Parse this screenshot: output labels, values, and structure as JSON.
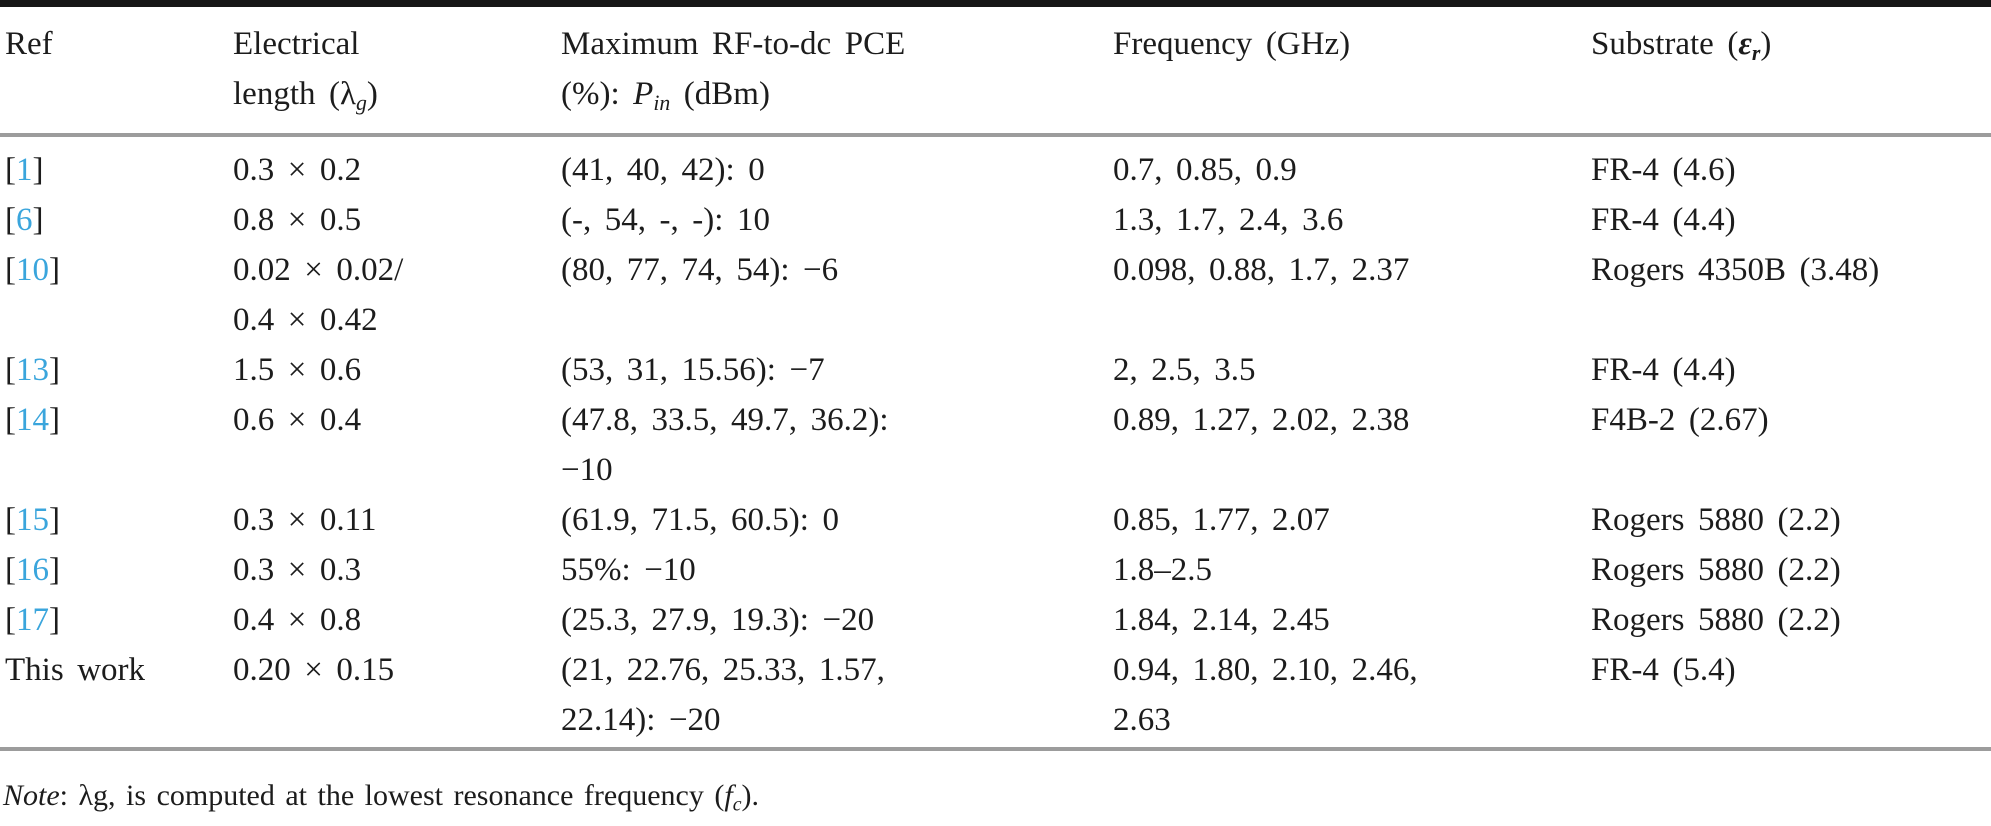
{
  "colors": {
    "ref_blue": "#3aa5dc",
    "text": "#1c1c1c",
    "rule_dark": "#161616",
    "rule_gray": "#9c9c9c"
  },
  "table": {
    "header": {
      "ref": "Ref",
      "electrical": {
        "line1": "Electrical",
        "line2_pre": "length (",
        "symbol": "λ",
        "sub": "g",
        "line2_post": ")"
      },
      "pce": {
        "line1": "Maximum RF-to-dc PCE",
        "line2_pre": "(%): ",
        "symbol": "P",
        "sub": "in",
        "line2_post": " (dBm)"
      },
      "frequency": "Frequency (GHz)",
      "substrate": {
        "pre": "Substrate (",
        "symbol": "ε",
        "sub": "r",
        "post": ")"
      }
    },
    "rows": [
      {
        "ref": {
          "bracket_open": "[",
          "num": "1",
          "bracket_close": "]"
        },
        "electrical": [
          "0.3 × 0.2"
        ],
        "pce": [
          "(41, 40, 42): 0"
        ],
        "frequency": [
          "0.7, 0.85, 0.9"
        ],
        "substrate": [
          "FR-4 (4.6)"
        ]
      },
      {
        "ref": {
          "bracket_open": "[",
          "num": "6",
          "bracket_close": "]"
        },
        "electrical": [
          "0.8 × 0.5"
        ],
        "pce": [
          "(-, 54, -, -): 10"
        ],
        "frequency": [
          "1.3, 1.7, 2.4, 3.6"
        ],
        "substrate": [
          "FR-4 (4.4)"
        ]
      },
      {
        "ref": {
          "bracket_open": "[",
          "num": "10",
          "bracket_close": "]"
        },
        "electrical": [
          "0.02 × 0.02/",
          "0.4 × 0.42"
        ],
        "pce": [
          "(80, 77, 74, 54): −6"
        ],
        "frequency": [
          "0.098, 0.88, 1.7, 2.37"
        ],
        "substrate": [
          "Rogers 4350B (3.48)"
        ]
      },
      {
        "ref": {
          "bracket_open": "[",
          "num": "13",
          "bracket_close": "]"
        },
        "electrical": [
          "1.5 × 0.6"
        ],
        "pce": [
          "(53, 31, 15.56): −7"
        ],
        "frequency": [
          "2, 2.5, 3.5"
        ],
        "substrate": [
          "FR-4 (4.4)"
        ]
      },
      {
        "ref": {
          "bracket_open": "[",
          "num": "14",
          "bracket_close": "]"
        },
        "electrical": [
          "0.6 × 0.4"
        ],
        "pce": [
          "(47.8, 33.5, 49.7, 36.2):",
          "−10"
        ],
        "frequency": [
          "0.89, 1.27, 2.02, 2.38"
        ],
        "substrate": [
          "F4B-2 (2.67)"
        ]
      },
      {
        "ref": {
          "bracket_open": "[",
          "num": "15",
          "bracket_close": "]"
        },
        "electrical": [
          "0.3 × 0.11"
        ],
        "pce": [
          "(61.9, 71.5, 60.5): 0"
        ],
        "frequency": [
          "0.85, 1.77, 2.07"
        ],
        "substrate": [
          "Rogers 5880 (2.2)"
        ]
      },
      {
        "ref": {
          "bracket_open": "[",
          "num": "16",
          "bracket_close": "]"
        },
        "electrical": [
          "0.3 × 0.3"
        ],
        "pce": [
          "55%: −10"
        ],
        "frequency": [
          "1.8–2.5"
        ],
        "substrate": [
          "Rogers 5880 (2.2)"
        ]
      },
      {
        "ref": {
          "bracket_open": "[",
          "num": "17",
          "bracket_close": "]"
        },
        "electrical": [
          "0.4 × 0.8"
        ],
        "pce": [
          "(25.3, 27.9, 19.3): −20"
        ],
        "frequency": [
          "1.84, 2.14, 2.45"
        ],
        "substrate": [
          "Rogers 5880 (2.2)"
        ]
      },
      {
        "ref": {
          "text": "This work"
        },
        "electrical": [
          "0.20 × 0.15"
        ],
        "pce": [
          "(21, 22.76, 25.33, 1.57,",
          "22.14): −20"
        ],
        "frequency": [
          "0.94, 1.80, 2.10, 2.46,",
          "2.63"
        ],
        "substrate": [
          "FR-4 (5.4)"
        ]
      }
    ],
    "note": {
      "label": "Note",
      "pre": ": λg, is computed at the lowest resonance frequency (",
      "symbol": "f",
      "sub": "c",
      "post": ")."
    }
  }
}
